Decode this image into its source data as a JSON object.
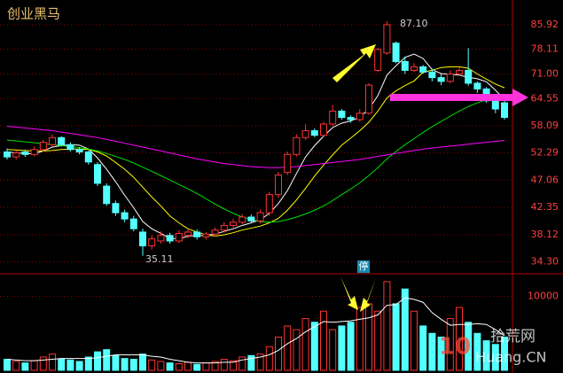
{
  "chart_data": {
    "type": "candlestick",
    "title": "创业黑马",
    "log": true,
    "grid": true,
    "ylim": [
      33.1,
      93.9
    ],
    "yticks": [
      85.92,
      78.11,
      {
        "value": 71,
        "label": "71.00"
      },
      64.55,
      58.09,
      52.29,
      47.06,
      42.35,
      38.12,
      {
        "value": 34.3,
        "label": "34.30"
      }
    ],
    "up_color": "#ff3232",
    "down_color": "#54ffff",
    "open": [
      52.5,
      51.5,
      52.5,
      52.0,
      53.0,
      54.0,
      55.5,
      54.0,
      53.0,
      52.5,
      50.0,
      46.0,
      43.0,
      41.5,
      40.5,
      38.5,
      36.5,
      37.2,
      38.0,
      37.2,
      38.0,
      38.5,
      37.8,
      38.2,
      38.8,
      39.5,
      40.0,
      40.8,
      40.2,
      41.5,
      44.5,
      48.5,
      52.0,
      55.5,
      57.0,
      56.0,
      58.5,
      61.5,
      60.0,
      59.5,
      61.0,
      72.0,
      77.0,
      80.0,
      74.5,
      72.0,
      73.0,
      71.5,
      70.0,
      69.0,
      71.0,
      72.0,
      68.5,
      67.0,
      64.0,
      63.5
    ],
    "high": [
      53.2,
      52.8,
      53.0,
      53.6,
      55.0,
      56.2,
      55.8,
      54.5,
      53.5,
      52.8,
      50.5,
      46.5,
      43.5,
      42.0,
      41.0,
      39.0,
      38.0,
      38.6,
      38.4,
      38.8,
      39.0,
      38.9,
      38.5,
      39.2,
      40.0,
      40.5,
      41.3,
      41.2,
      42.0,
      45.0,
      48.6,
      52.6,
      56.2,
      58.5,
      57.5,
      59.0,
      63.0,
      62.0,
      60.5,
      62.0,
      68.5,
      78.6,
      87.1,
      80.5,
      76.0,
      74.0,
      73.5,
      72.5,
      71.0,
      72.0,
      72.8,
      78.5,
      69.0,
      67.5,
      64.5,
      64.0
    ],
    "low": [
      51.0,
      51.0,
      51.5,
      51.6,
      52.6,
      53.6,
      53.6,
      52.6,
      52.0,
      50.0,
      46.0,
      42.6,
      41.0,
      40.0,
      38.6,
      35.11,
      36.0,
      36.8,
      36.8,
      36.9,
      37.6,
      37.4,
      37.4,
      37.8,
      38.4,
      39.2,
      39.7,
      39.9,
      39.8,
      41.0,
      44.0,
      48.0,
      51.6,
      55.0,
      55.6,
      55.6,
      58.0,
      59.5,
      58.8,
      59.0,
      60.6,
      71.5,
      76.5,
      74.0,
      71.0,
      71.5,
      71.0,
      69.0,
      68.0,
      68.5,
      70.5,
      67.8,
      66.0,
      63.5,
      61.0,
      59.5
    ],
    "close": [
      51.5,
      52.3,
      52.0,
      53.0,
      54.5,
      55.5,
      54.0,
      53.0,
      52.5,
      50.5,
      46.5,
      43.0,
      41.5,
      40.5,
      39.0,
      36.5,
      37.5,
      38.0,
      37.2,
      38.3,
      38.5,
      37.8,
      38.2,
      38.8,
      39.5,
      40.0,
      40.8,
      40.2,
      41.5,
      44.5,
      48.0,
      52.0,
      55.5,
      57.0,
      56.0,
      58.5,
      61.5,
      60.0,
      59.5,
      61.0,
      68.0,
      78.1,
      85.9,
      74.5,
      72.0,
      73.0,
      71.5,
      70.0,
      69.0,
      71.0,
      72.0,
      68.5,
      67.0,
      64.0,
      62.0,
      60.0
    ],
    "ma_lines": [
      {
        "color": "#ffffff",
        "values": [
          52.5,
          52.3,
          52.2,
          52.1,
          52.7,
          53.5,
          53.8,
          54.0,
          53.9,
          53.1,
          51.3,
          49.1,
          46.8,
          44.4,
          42.3,
          40.1,
          39.0,
          38.3,
          37.6,
          37.5,
          37.9,
          38.0,
          38.0,
          38.2,
          38.6,
          39.0,
          39.5,
          39.9,
          40.4,
          41.4,
          43.0,
          45.2,
          48.3,
          51.5,
          53.8,
          55.8,
          57.7,
          58.7,
          59.2,
          60.1,
          62.0,
          65.3,
          70.7,
          73.3,
          75.7,
          76.7,
          75.4,
          72.2,
          71.1,
          70.9,
          70.7,
          70.1,
          69.7,
          68.9,
          66.7,
          64.3
        ]
      },
      {
        "color": "#ffff00",
        "values": [
          53.0,
          52.9,
          52.8,
          52.7,
          52.7,
          52.8,
          53.0,
          53.1,
          53.1,
          53.0,
          52.5,
          51.7,
          50.4,
          49.1,
          47.6,
          45.8,
          44.1,
          42.6,
          41.0,
          39.9,
          39.0,
          38.5,
          38.1,
          37.9,
          38.1,
          38.4,
          38.8,
          39.1,
          39.4,
          39.9,
          40.6,
          41.9,
          43.6,
          45.6,
          47.8,
          49.9,
          51.9,
          53.9,
          55.4,
          57.0,
          58.9,
          61.5,
          64.7,
          66.5,
          67.9,
          69.1,
          71.5,
          72.0,
          72.8,
          73.0,
          73.0,
          72.6,
          71.0,
          69.6,
          68.3,
          67.3
        ]
      },
      {
        "color": "#00e000",
        "values": [
          55,
          54.8,
          54.6,
          54.4,
          54.2,
          54.0,
          53.8,
          53.6,
          53.4,
          53.1,
          52.7,
          52.2,
          51.6,
          51.0,
          50.3,
          49.5,
          48.7,
          47.9,
          47.1,
          46.3,
          45.5,
          44.7,
          43.8,
          42.9,
          42.1,
          41.4,
          40.8,
          40.4,
          40.1,
          40.0,
          40.1,
          40.4,
          40.8,
          41.3,
          41.9,
          42.6,
          43.5,
          44.5,
          45.5,
          46.6,
          47.9,
          49.4,
          51.1,
          52.6,
          54.0,
          55.3,
          56.6,
          57.9,
          59.1,
          60.3,
          61.5,
          62.6,
          63.5,
          64.3,
          64.9,
          65.2
        ]
      },
      {
        "color": "#ff00ff",
        "values": [
          58.0,
          57.8,
          57.6,
          57.4,
          57.2,
          57.0,
          56.7,
          56.4,
          56.1,
          55.8,
          55.5,
          55.1,
          54.7,
          54.3,
          53.9,
          53.5,
          53.1,
          52.7,
          52.3,
          51.9,
          51.5,
          51.1,
          50.8,
          50.5,
          50.2,
          50.0,
          49.8,
          49.6,
          49.5,
          49.4,
          49.4,
          49.5,
          49.6,
          49.8,
          50.0,
          50.2,
          50.4,
          50.6,
          50.8,
          51.0,
          51.3,
          51.6,
          51.9,
          52.2,
          52.5,
          52.8,
          53.1,
          53.3,
          53.5,
          53.7,
          53.9,
          54.1,
          54.3,
          54.5,
          54.7,
          54.9
        ]
      }
    ],
    "volume": [
      1500,
      1200,
      1000,
      1300,
      1800,
      2200,
      1500,
      1400,
      1200,
      1800,
      2500,
      2800,
      2000,
      1600,
      1500,
      2200,
      1400,
      1200,
      1000,
      900,
      1100,
      800,
      1000,
      1200,
      1500,
      1300,
      1800,
      2000,
      2200,
      3200,
      4500,
      6000,
      5500,
      7000,
      6500,
      8000,
      5500,
      6000,
      6500,
      8500,
      9000,
      8000,
      12000,
      9000,
      11000,
      8000,
      6000,
      5000,
      4500,
      7000,
      8500,
      6500,
      5000,
      4000,
      3500,
      4500
    ],
    "volume_ma": {
      "color": "#ffffff",
      "values": [
        1500,
        1400,
        1300,
        1300,
        1400,
        1500,
        1600,
        1600,
        1600,
        1600,
        1700,
        1900,
        2100,
        2100,
        2100,
        2100,
        1900,
        1800,
        1500,
        1300,
        1100,
        1000,
        1000,
        1000,
        1100,
        1100,
        1400,
        1600,
        1800,
        2100,
        2700,
        3600,
        4300,
        5200,
        5900,
        6600,
        6500,
        6600,
        6700,
        6900,
        7100,
        7500,
        8800,
        8900,
        9800,
        9600,
        9200,
        7800,
        6900,
        6100,
        6200,
        6200,
        6300,
        6200,
        5500,
        4700
      ]
    },
    "volume_ylim": [
      0,
      12700
    ],
    "volume_yticks": [
      10000
    ],
    "annotations": [
      "87.10",
      "35.11",
      "停"
    ],
    "watermark": [
      "10",
      "拾荒网",
      "Huang.CN"
    ]
  }
}
